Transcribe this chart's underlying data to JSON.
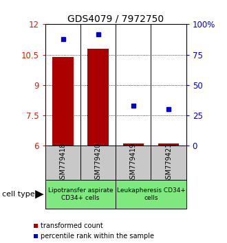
{
  "title": "GDS4079 / 7972750",
  "samples": [
    "GSM779418",
    "GSM779420",
    "GSM779419",
    "GSM779421"
  ],
  "transformed_count": [
    10.4,
    10.8,
    6.1,
    6.1
  ],
  "percentile_rank": [
    88,
    92,
    33,
    30
  ],
  "ylim_left": [
    6,
    12
  ],
  "ylim_right": [
    0,
    100
  ],
  "yticks_left": [
    6,
    7.5,
    9,
    10.5,
    12
  ],
  "yticks_right": [
    0,
    25,
    50,
    75,
    100
  ],
  "ytick_labels_right": [
    "0",
    "25",
    "50",
    "75",
    "100%"
  ],
  "bar_color": "#aa0000",
  "dot_color": "#0000cc",
  "bar_width": 0.6,
  "group_bg_color": "#c8c8c8",
  "green_color": "#7fe87f",
  "group0_label": "Lipotransfer aspirate\nCD34+ cells",
  "group1_label": "Leukapheresis CD34+\ncells",
  "legend_bar_label": "transformed count",
  "legend_dot_label": "percentile rank within the sample",
  "cell_type_label": "cell type",
  "axis_left_color": "#cc2200",
  "axis_right_color": "#0000cc",
  "title_fontsize": 10,
  "tick_fontsize": 8.5,
  "sample_label_fontsize": 7,
  "group_label_fontsize": 6.5,
  "legend_fontsize": 7
}
